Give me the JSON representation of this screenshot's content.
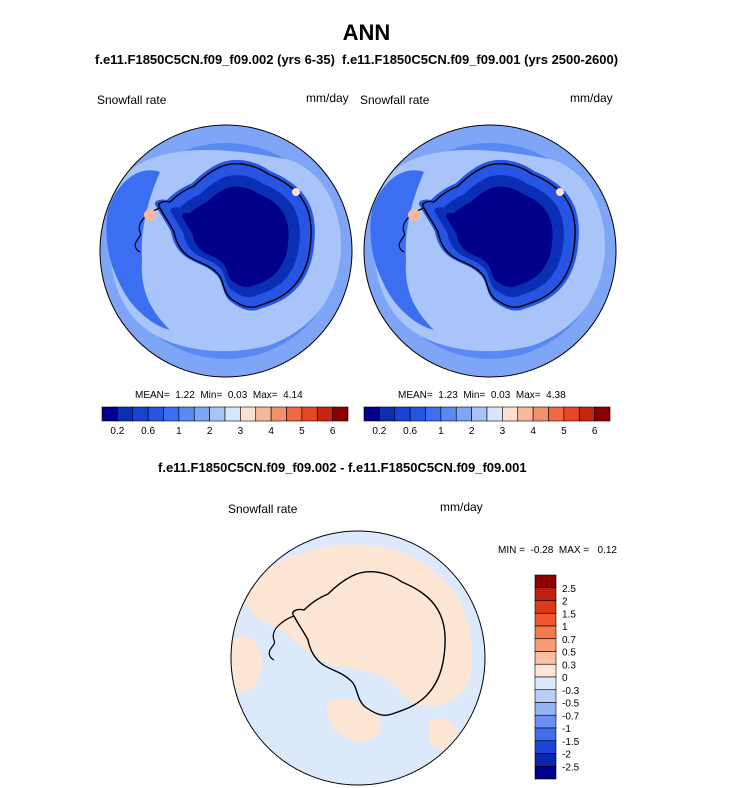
{
  "title": "ANN",
  "colors": {
    "coast": "#000000",
    "background": "#ffffff"
  },
  "panels": [
    {
      "id": "case",
      "case_label": "f.e11.F1850C5CN.f09_f09.002 (yrs 6-35)",
      "variable": "Snowfall rate",
      "units": "mm/day",
      "stats": {
        "mean_label": "MEAN=",
        "mean": "1.22",
        "min_label": "Min=",
        "min": "0.03",
        "max_label": "Max=",
        "max": "4.14"
      }
    },
    {
      "id": "control",
      "case_label": "f.e11.F1850C5CN.f09_f09.001 (yrs 2500-2600)",
      "variable": "Snowfall rate",
      "units": "mm/day",
      "stats": {
        "mean_label": "MEAN=",
        "mean": "1.23",
        "min_label": "Min=",
        "min": "0.03",
        "max_label": "Max=",
        "max": "4.38"
      }
    }
  ],
  "difference": {
    "title": "f.e11.F1850C5CN.f09_f09.002 - f.e11.F1850C5CN.f09_f09.001",
    "variable": "Snowfall rate",
    "units": "mm/day",
    "stats": {
      "min_label": "MIN =",
      "min": "-0.28",
      "max_label": "MAX =",
      "max": "0.12"
    }
  },
  "chart_data": [
    {
      "type": "heatmap",
      "projection": "south-polar-stereographic",
      "title": "f.e11.F1850C5CN.f09_f09.002 (yrs 6-35)",
      "subtitle": "Snowfall rate",
      "units": "mm/day",
      "colorbar": {
        "orientation": "horizontal",
        "tick_labels": [
          "0.2",
          "0.6",
          "1",
          "2",
          "3",
          "4",
          "5",
          "6"
        ],
        "levels": [
          0.2,
          0.4,
          0.6,
          0.8,
          1,
          1.5,
          2,
          2.5,
          3,
          3.5,
          4,
          4.5,
          5,
          5.5,
          6
        ],
        "colors": [
          "#00008b",
          "#0a2fb5",
          "#1742d2",
          "#2655e3",
          "#3b6ef0",
          "#5a89f3",
          "#7ea5f6",
          "#a9c4f9",
          "#d7e6fb",
          "#fde0cf",
          "#f7b89c",
          "#f3916e",
          "#ef6a43",
          "#e84624",
          "#c9240f",
          "#8b0000"
        ]
      },
      "stats": {
        "mean": 1.22,
        "min": 0.03,
        "max": 4.14
      }
    },
    {
      "type": "heatmap",
      "projection": "south-polar-stereographic",
      "title": "f.e11.F1850C5CN.f09_f09.001 (yrs 2500-2600)",
      "subtitle": "Snowfall rate",
      "units": "mm/day",
      "colorbar": {
        "orientation": "horizontal",
        "tick_labels": [
          "0.2",
          "0.6",
          "1",
          "2",
          "3",
          "4",
          "5",
          "6"
        ],
        "levels": [
          0.2,
          0.4,
          0.6,
          0.8,
          1,
          1.5,
          2,
          2.5,
          3,
          3.5,
          4,
          4.5,
          5,
          5.5,
          6
        ],
        "colors": [
          "#00008b",
          "#0a2fb5",
          "#1742d2",
          "#2655e3",
          "#3b6ef0",
          "#5a89f3",
          "#7ea5f6",
          "#a9c4f9",
          "#d7e6fb",
          "#fde0cf",
          "#f7b89c",
          "#f3916e",
          "#ef6a43",
          "#e84624",
          "#c9240f",
          "#8b0000"
        ]
      },
      "stats": {
        "mean": 1.23,
        "min": 0.03,
        "max": 4.38
      }
    },
    {
      "type": "heatmap",
      "projection": "south-polar-stereographic",
      "title": "f.e11.F1850C5CN.f09_f09.002 - f.e11.F1850C5CN.f09_f09.001",
      "subtitle": "Snowfall rate",
      "units": "mm/day",
      "colorbar": {
        "orientation": "vertical",
        "tick_labels": [
          "2.5",
          "2",
          "1.5",
          "1",
          "0.7",
          "0.5",
          "0.3",
          "0",
          "-0.3",
          "-0.5",
          "-0.7",
          "-1",
          "-1.5",
          "-2",
          "-2.5"
        ],
        "levels": [
          2.5,
          2,
          1.5,
          1,
          0.7,
          0.5,
          0.3,
          0,
          -0.3,
          -0.5,
          -0.7,
          -1,
          -1.5,
          -2,
          -2.5
        ],
        "colors": [
          "#8b0000",
          "#c0200c",
          "#de3a15",
          "#f0562a",
          "#f47a4c",
          "#f79d75",
          "#f9c0a3",
          "#fde6d3",
          "#dce9fb",
          "#b9cff8",
          "#92b2f5",
          "#6a91f1",
          "#3f6ded",
          "#1c45d6",
          "#0a25b0",
          "#00008b"
        ]
      },
      "stats": {
        "min": -0.28,
        "max": 0.12
      }
    }
  ]
}
